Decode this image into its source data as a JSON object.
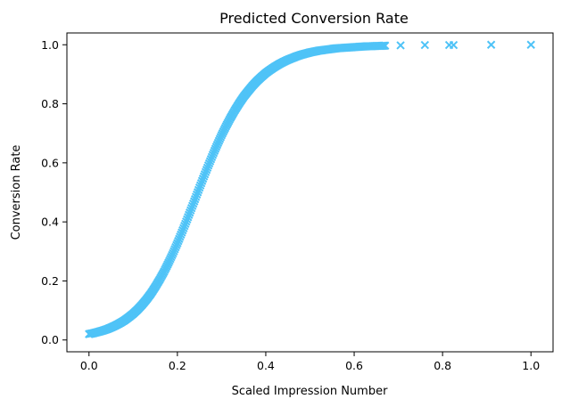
{
  "chart_data": {
    "type": "scatter",
    "title": "Predicted Conversion Rate",
    "xlabel": "Scaled Impression Number",
    "ylabel": "Conversion Rate",
    "xlim": [
      -0.05,
      1.05
    ],
    "ylim": [
      -0.04,
      1.04
    ],
    "xticks": [
      "0.0",
      "0.2",
      "0.4",
      "0.6",
      "0.8",
      "1.0"
    ],
    "yticks": [
      "0.0",
      "0.2",
      "0.4",
      "0.6",
      "0.8",
      "1.0"
    ],
    "marker": "x",
    "color": "#4fc3f7",
    "grid": false,
    "legend": "none",
    "series": [
      {
        "x": [
          0.0,
          0.01,
          0.02,
          0.03,
          0.04,
          0.05,
          0.06,
          0.07,
          0.08,
          0.09,
          0.1,
          0.11,
          0.12,
          0.13,
          0.14,
          0.15,
          0.16,
          0.17,
          0.18,
          0.19,
          0.2,
          0.21,
          0.22,
          0.23,
          0.24,
          0.25,
          0.26,
          0.27,
          0.28,
          0.29,
          0.3,
          0.31,
          0.32,
          0.33,
          0.34,
          0.35,
          0.36,
          0.37,
          0.38,
          0.39,
          0.4,
          0.41,
          0.42,
          0.43,
          0.44,
          0.45,
          0.46,
          0.47,
          0.48,
          0.49,
          0.5,
          0.51,
          0.52,
          0.53,
          0.54,
          0.55,
          0.56,
          0.57,
          0.58,
          0.59,
          0.6,
          0.61,
          0.62,
          0.63,
          0.64,
          0.65,
          0.66,
          0.67,
          0.705,
          0.76,
          0.815,
          0.825,
          0.91,
          1.0
        ],
        "y": [
          0.02,
          0.023,
          0.027,
          0.031,
          0.036,
          0.042,
          0.049,
          0.057,
          0.066,
          0.077,
          0.089,
          0.103,
          0.119,
          0.137,
          0.157,
          0.18,
          0.205,
          0.232,
          0.262,
          0.294,
          0.328,
          0.364,
          0.401,
          0.439,
          0.477,
          0.516,
          0.554,
          0.591,
          0.627,
          0.661,
          0.694,
          0.724,
          0.752,
          0.778,
          0.802,
          0.824,
          0.843,
          0.861,
          0.877,
          0.891,
          0.904,
          0.915,
          0.925,
          0.934,
          0.942,
          0.949,
          0.955,
          0.961,
          0.966,
          0.97,
          0.974,
          0.977,
          0.98,
          0.982,
          0.984,
          0.986,
          0.988,
          0.989,
          0.99,
          0.991,
          0.992,
          0.993,
          0.994,
          0.995,
          0.995,
          0.996,
          0.996,
          0.997,
          0.998,
          0.999,
          0.999,
          0.999,
          1.0,
          1.0
        ]
      }
    ]
  }
}
